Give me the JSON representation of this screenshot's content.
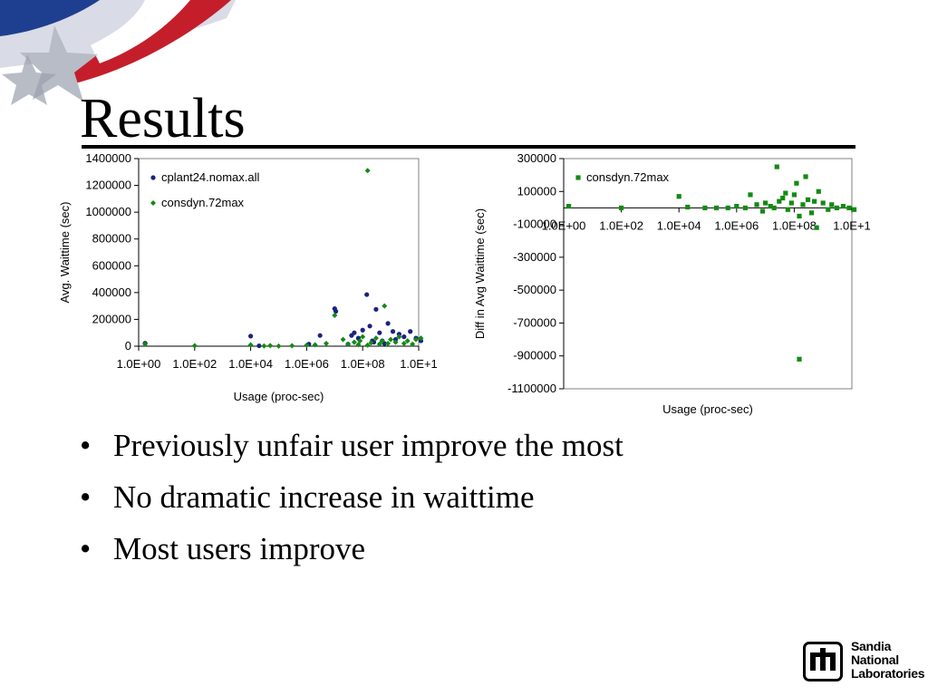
{
  "slide": {
    "title": "Results",
    "bullets": [
      "Previously unfair user improve the most",
      "No dramatic increase in waittime",
      "Most users improve"
    ],
    "logo": {
      "lines": [
        "Sandia",
        "National",
        "Laboratories"
      ],
      "icon": "sandia-logo-icon"
    },
    "decoration": "flag-star-icon"
  },
  "colors": {
    "series_blue": "#1a237e",
    "series_green": "#138a13",
    "rule": "#000000"
  },
  "chart_data": [
    {
      "type": "scatter",
      "xscale": "log",
      "xlim": [
        1,
        10000000000
      ],
      "ylim": [
        0,
        1400000
      ],
      "xticks": [
        "1.0E+00",
        "1.0E+02",
        "1.0E+04",
        "1.0E+06",
        "1.0E+08",
        "1.0E+1"
      ],
      "yticks": [
        "0",
        "200000",
        "400000",
        "600000",
        "800000",
        "1000000",
        "1200000",
        "1400000"
      ],
      "xlabel": "Usage (proc-sec)",
      "ylabel": "Avg. Waittime (sec)",
      "legend": "top-left",
      "series": [
        {
          "name": "cplant24.nomax.all",
          "marker": "circle",
          "color": "#1a237e",
          "points": [
            [
              1.7,
              22000
            ],
            [
              10000.0,
              75000
            ],
            [
              20000.0,
              3000
            ],
            [
              1200000.0,
              15000
            ],
            [
              3000000.0,
              80000
            ],
            [
              10000000.0,
              280000
            ],
            [
              11000000.0,
              260000
            ],
            [
              30000000.0,
              15000
            ],
            [
              40000000.0,
              80000
            ],
            [
              50000000.0,
              100000
            ],
            [
              70000000.0,
              60000
            ],
            [
              100000000.0,
              120000
            ],
            [
              140000000.0,
              385000
            ],
            [
              180000000.0,
              150000
            ],
            [
              220000000.0,
              40000
            ],
            [
              300000000.0,
              275000
            ],
            [
              400000000.0,
              100000
            ],
            [
              500000000.0,
              40000
            ],
            [
              800000000.0,
              170000
            ],
            [
              1200000000.0,
              110000
            ],
            [
              2000000000.0,
              90000
            ],
            [
              3000000000.0,
              70000
            ],
            [
              5000000000.0,
              110000
            ],
            [
              8000000000.0,
              60000
            ],
            [
              12000000000.0,
              40000
            ],
            [
              250000000.0,
              30000
            ],
            [
              600000000.0,
              20000
            ],
            [
              1500000000.0,
              50000
            ]
          ]
        },
        {
          "name": "consdyn.72max",
          "marker": "diamond",
          "color": "#138a13",
          "points": [
            [
              1.7,
              15000
            ],
            [
              100,
              3000
            ],
            [
              10000.0,
              10000
            ],
            [
              30000.0,
              2000
            ],
            [
              50000.0,
              4000
            ],
            [
              100000.0,
              1000
            ],
            [
              300000.0,
              3000
            ],
            [
              1000000.0,
              8000
            ],
            [
              2000000.0,
              10000
            ],
            [
              5000000.0,
              20000
            ],
            [
              10000000.0,
              230000
            ],
            [
              20000000.0,
              50000
            ],
            [
              30000000.0,
              15000
            ],
            [
              50000000.0,
              30000
            ],
            [
              80000000.0,
              40000
            ],
            [
              100000000.0,
              70000
            ],
            [
              150000000.0,
              1310000
            ],
            [
              200000000.0,
              25000
            ],
            [
              300000000.0,
              60000
            ],
            [
              400000000.0,
              15000
            ],
            [
              500000000.0,
              40000
            ],
            [
              600000000.0,
              300000
            ],
            [
              800000000.0,
              20000
            ],
            [
              1000000000.0,
              50000
            ],
            [
              1500000000.0,
              30000
            ],
            [
              2000000000.0,
              70000
            ],
            [
              3000000000.0,
              20000
            ],
            [
              4000000000.0,
              40000
            ],
            [
              6000000000.0,
              15000
            ],
            [
              8000000000.0,
              50000
            ],
            [
              12000000000.0,
              60000
            ],
            [
              150000000.0,
              8000
            ],
            [
              70000000.0,
              12000
            ]
          ]
        }
      ]
    },
    {
      "type": "scatter",
      "xscale": "log",
      "xlim": [
        1,
        10000000000
      ],
      "ylim": [
        -1100000,
        300000
      ],
      "xticks": [
        "1.0E+00",
        "1.0E+02",
        "1.0E+04",
        "1.0E+06",
        "1.0E+08",
        "1.0E+1"
      ],
      "yticks": [
        "-1100000",
        "-900000",
        "-700000",
        "-500000",
        "-300000",
        "-100000",
        "100000",
        "300000"
      ],
      "xlabel": "Usage (proc-sec)",
      "ylabel": "Diff in Avg Waittime (sec)",
      "legend": "top-left",
      "series": [
        {
          "name": "consdyn.72max",
          "marker": "square",
          "color": "#138a13",
          "points": [
            [
              1.5,
              10000
            ],
            [
              100,
              0
            ],
            [
              10000.0,
              70000
            ],
            [
              20000.0,
              5000
            ],
            [
              80000.0,
              0
            ],
            [
              200000.0,
              0
            ],
            [
              500000.0,
              0
            ],
            [
              1000000.0,
              10000
            ],
            [
              2000000.0,
              0
            ],
            [
              3000000.0,
              80000
            ],
            [
              5000000.0,
              20000
            ],
            [
              8000000.0,
              -20000
            ],
            [
              10000000.0,
              30000
            ],
            [
              15000000.0,
              10000
            ],
            [
              20000000.0,
              0
            ],
            [
              25000000.0,
              250000
            ],
            [
              30000000.0,
              40000
            ],
            [
              40000000.0,
              60000
            ],
            [
              50000000.0,
              90000
            ],
            [
              60000000.0,
              -10000
            ],
            [
              80000000.0,
              30000
            ],
            [
              100000000.0,
              80000
            ],
            [
              120000000.0,
              150000
            ],
            [
              150000000.0,
              -50000
            ],
            [
              150000000.0,
              -920000
            ],
            [
              200000000.0,
              20000
            ],
            [
              250000000.0,
              190000
            ],
            [
              300000000.0,
              50000
            ],
            [
              400000000.0,
              -30000
            ],
            [
              500000000.0,
              40000
            ],
            [
              700000000.0,
              100000
            ],
            [
              1000000000.0,
              30000
            ],
            [
              1500000000.0,
              -10000
            ],
            [
              2000000000.0,
              20000
            ],
            [
              3000000000.0,
              0
            ],
            [
              5000000000.0,
              10000
            ],
            [
              8000000000.0,
              0
            ],
            [
              12000000000.0,
              -10000
            ],
            [
              600000000.0,
              -120000
            ]
          ]
        }
      ]
    }
  ]
}
